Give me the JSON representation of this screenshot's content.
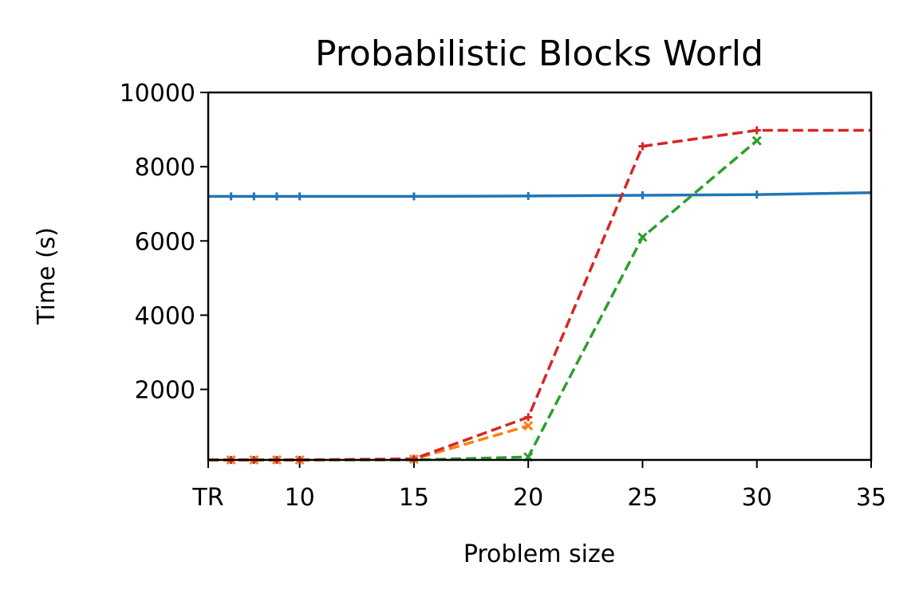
{
  "chart_data": {
    "type": "line",
    "title": "Probabilistic Blocks World",
    "xlabel": "Problem size",
    "ylabel": "Time (s)",
    "xlim": [
      6,
      35
    ],
    "ylim": [
      100,
      10000
    ],
    "xticks": [
      {
        "value": 6,
        "label": "TR"
      },
      {
        "value": 10,
        "label": "10"
      },
      {
        "value": 15,
        "label": "15"
      },
      {
        "value": 20,
        "label": "20"
      },
      {
        "value": 25,
        "label": "25"
      },
      {
        "value": 30,
        "label": "30"
      },
      {
        "value": 35,
        "label": "35"
      }
    ],
    "yticks": [
      {
        "value": 2000,
        "label": "2000"
      },
      {
        "value": 4000,
        "label": "4000"
      },
      {
        "value": 6000,
        "label": "6000"
      },
      {
        "value": 8000,
        "label": "8000"
      },
      {
        "value": 10000,
        "label": "10000"
      }
    ],
    "grid": false,
    "legend": "none",
    "series": [
      {
        "color": "#1f77b4",
        "linestyle": "solid",
        "marker": "plus",
        "points": [
          [
            6,
            7200
          ],
          [
            7,
            7200
          ],
          [
            8,
            7200
          ],
          [
            9,
            7200
          ],
          [
            10,
            7200
          ],
          [
            15,
            7200
          ],
          [
            20,
            7210
          ],
          [
            25,
            7230
          ],
          [
            30,
            7250
          ],
          [
            35,
            7300
          ]
        ],
        "markers": [
          [
            7,
            7200
          ],
          [
            8,
            7200
          ],
          [
            9,
            7200
          ],
          [
            10,
            7200
          ],
          [
            15,
            7200
          ],
          [
            20,
            7210
          ],
          [
            25,
            7230
          ],
          [
            30,
            7250
          ]
        ]
      },
      {
        "color": "#ff7f0e",
        "linestyle": "dashed",
        "marker": "x",
        "points": [
          [
            6,
            100
          ],
          [
            7,
            100
          ],
          [
            8,
            100
          ],
          [
            9,
            100
          ],
          [
            10,
            100
          ],
          [
            15,
            120
          ],
          [
            20,
            1020
          ]
        ],
        "markers": [
          [
            7,
            100
          ],
          [
            8,
            100
          ],
          [
            9,
            100
          ],
          [
            10,
            100
          ],
          [
            15,
            120
          ],
          [
            20,
            1020
          ]
        ]
      },
      {
        "color": "#2ca02c",
        "linestyle": "dashed",
        "marker": "x",
        "points": [
          [
            6,
            100
          ],
          [
            7,
            100
          ],
          [
            8,
            100
          ],
          [
            9,
            100
          ],
          [
            10,
            100
          ],
          [
            15,
            100
          ],
          [
            20,
            180
          ],
          [
            25,
            6100
          ],
          [
            30,
            8700
          ]
        ],
        "markers": [
          [
            20,
            180
          ],
          [
            25,
            6100
          ],
          [
            30,
            8700
          ]
        ]
      },
      {
        "color": "#d62728",
        "linestyle": "dashed",
        "marker": "plus",
        "points": [
          [
            6,
            100
          ],
          [
            7,
            100
          ],
          [
            8,
            100
          ],
          [
            9,
            100
          ],
          [
            10,
            100
          ],
          [
            15,
            130
          ],
          [
            20,
            1250
          ],
          [
            25,
            8550
          ],
          [
            30,
            8980
          ],
          [
            35,
            8980
          ]
        ],
        "markers": [
          [
            7,
            100
          ],
          [
            8,
            100
          ],
          [
            9,
            100
          ],
          [
            10,
            100
          ],
          [
            15,
            130
          ],
          [
            20,
            1250
          ],
          [
            25,
            8550
          ],
          [
            30,
            8980
          ]
        ]
      }
    ]
  }
}
